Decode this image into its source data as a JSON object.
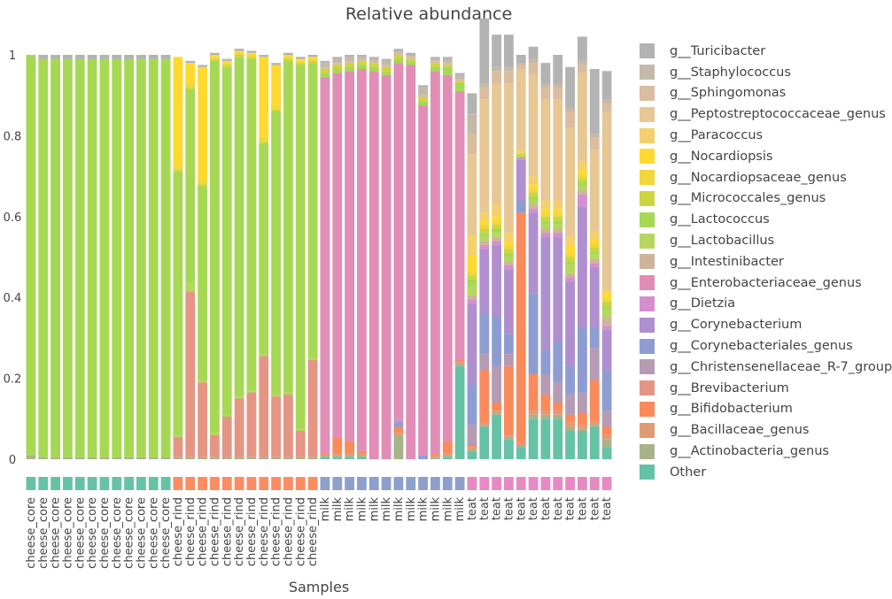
{
  "chart_data": {
    "type": "bar",
    "stacked": true,
    "title": "Relative abundance",
    "xlabel": "Samples",
    "ylabel": "",
    "ylim": [
      0,
      1
    ],
    "yticks": [
      "0",
      "0.2",
      "0.4",
      "0.6",
      "0.8",
      "1"
    ],
    "legend_position": "right",
    "categories": [
      "cheese_core",
      "cheese_core",
      "cheese_core",
      "cheese_core",
      "cheese_core",
      "cheese_core",
      "cheese_core",
      "cheese_core",
      "cheese_core",
      "cheese_core",
      "cheese_core",
      "cheese_core",
      "cheese_rind",
      "cheese_rind",
      "cheese_rind",
      "cheese_rind",
      "cheese_rind",
      "cheese_rind",
      "cheese_rind",
      "cheese_rind",
      "cheese_rind",
      "cheese_rind",
      "cheese_rind",
      "cheese_rind",
      "milk",
      "milk",
      "milk",
      "milk",
      "milk",
      "milk",
      "milk",
      "milk",
      "milk",
      "milk",
      "milk",
      "milk",
      "teat",
      "teat",
      "teat",
      "teat",
      "teat",
      "teat",
      "teat",
      "teat",
      "teat",
      "teat",
      "teat",
      "teat"
    ],
    "group_strip": {
      "cheese_core": "#66c2a5",
      "cheese_rind": "#fc8d62",
      "milk": "#8da0cb",
      "teat": "#e78ac3"
    },
    "series": [
      {
        "name": "Other",
        "color": "#66c2a5",
        "values": [
          0,
          0,
          0,
          0,
          0,
          0,
          0,
          0,
          0,
          0,
          0,
          0,
          0,
          0,
          0,
          0,
          0,
          0,
          0,
          0,
          0,
          0,
          0,
          0,
          0.005,
          0.005,
          0.005,
          0.005,
          0,
          0,
          0,
          0,
          0,
          0,
          0.005,
          0.23,
          0.02,
          0.08,
          0.11,
          0.05,
          0.03,
          0.1,
          0.1,
          0.1,
          0.07,
          0.07,
          0.08,
          0.03
        ]
      },
      {
        "name": "g__Actinobacteria_genus",
        "color": "#a8b38a",
        "values": [
          0.01,
          0.005,
          0.005,
          0.005,
          0.005,
          0.005,
          0.005,
          0.005,
          0.005,
          0.005,
          0.005,
          0.005,
          0.005,
          0.005,
          0.005,
          0.005,
          0.005,
          0.005,
          0.005,
          0.005,
          0.005,
          0.005,
          0.005,
          0.005,
          0.005,
          0.005,
          0.005,
          0.005,
          0,
          0,
          0.06,
          0,
          0,
          0.005,
          0.005,
          0.005,
          0.005,
          0.005,
          0.005,
          0.005,
          0.005,
          0.01,
          0.01,
          0.01,
          0.01,
          0.005,
          0.005,
          0.02
        ]
      },
      {
        "name": "g__Bacillaceae_genus",
        "color": "#e09b73",
        "values": [
          0,
          0,
          0,
          0,
          0,
          0,
          0,
          0,
          0,
          0,
          0,
          0,
          0,
          0,
          0,
          0,
          0,
          0,
          0,
          0,
          0,
          0,
          0,
          0,
          0,
          0.005,
          0.005,
          0.005,
          0,
          0,
          0.005,
          0,
          0,
          0.005,
          0.005,
          0.005,
          0.005,
          0.005,
          0.005,
          0.005,
          0.005,
          0.01,
          0.01,
          0.01,
          0.01,
          0.01,
          0.01,
          0.01
        ]
      },
      {
        "name": "g__Bifidobacterium",
        "color": "#fa8a5c",
        "values": [
          0,
          0,
          0,
          0,
          0,
          0,
          0,
          0,
          0,
          0,
          0,
          0,
          0,
          0,
          0,
          0,
          0,
          0,
          0,
          0,
          0,
          0,
          0,
          0,
          0.005,
          0.04,
          0.03,
          0.005,
          0,
          0,
          0.015,
          0,
          0,
          0.005,
          0.03,
          0.005,
          0.005,
          0.13,
          0.02,
          0.17,
          0.57,
          0.09,
          0.04,
          0.02,
          0.02,
          0.03,
          0.1,
          0.02
        ]
      },
      {
        "name": "g__Brevibacterium",
        "color": "#e59584",
        "values": [
          0,
          0,
          0,
          0,
          0,
          0,
          0,
          0,
          0,
          0,
          0,
          0,
          0.05,
          0.41,
          0.185,
          0.055,
          0.1,
          0.145,
          0.16,
          0.25,
          0.15,
          0.155,
          0.065,
          0.24,
          0,
          0,
          0,
          0,
          0,
          0,
          0,
          0,
          0,
          0,
          0,
          0,
          0,
          0,
          0,
          0,
          0,
          0,
          0,
          0,
          0,
          0,
          0,
          0
        ]
      },
      {
        "name": "g__Christensenellaceae_R-7_group",
        "color": "#b59bb4",
        "values": [
          0,
          0,
          0,
          0,
          0,
          0,
          0,
          0,
          0,
          0,
          0,
          0,
          0,
          0,
          0,
          0,
          0,
          0,
          0,
          0,
          0,
          0,
          0,
          0,
          0,
          0,
          0,
          0,
          0,
          0,
          0,
          0,
          0,
          0,
          0,
          0,
          0.05,
          0.04,
          0.09,
          0.03,
          0,
          0,
          0.05,
          0.05,
          0.05,
          0.05,
          0.08,
          0.04
        ]
      },
      {
        "name": "g__Corynebacteriales_genus",
        "color": "#8e9dd1",
        "values": [
          0,
          0,
          0,
          0,
          0,
          0,
          0,
          0,
          0,
          0,
          0,
          0,
          0,
          0,
          0,
          0,
          0,
          0,
          0,
          0,
          0,
          0,
          0,
          0,
          0,
          0,
          0,
          0,
          0,
          0,
          0.01,
          0,
          0.01,
          0,
          0,
          0,
          0.1,
          0.1,
          0.12,
          0.05,
          0.03,
          0.2,
          0.06,
          0.1,
          0.07,
          0.16,
          0.05,
          0.1
        ]
      },
      {
        "name": "g__Corynebacterium",
        "color": "#b08fce",
        "values": [
          0,
          0,
          0,
          0,
          0,
          0,
          0,
          0,
          0,
          0,
          0,
          0,
          0,
          0,
          0,
          0,
          0,
          0,
          0,
          0,
          0,
          0,
          0,
          0,
          0,
          0,
          0,
          0,
          0,
          0,
          0.005,
          0,
          0,
          0,
          0,
          0,
          0.2,
          0.16,
          0.18,
          0.16,
          0.1,
          0.2,
          0.28,
          0.26,
          0.21,
          0.3,
          0.15,
          0.1
        ]
      },
      {
        "name": "g__Dietzia",
        "color": "#d48fcf",
        "values": [
          0,
          0,
          0,
          0,
          0,
          0,
          0,
          0,
          0,
          0,
          0,
          0,
          0,
          0,
          0,
          0,
          0,
          0,
          0,
          0,
          0,
          0,
          0,
          0,
          0,
          0,
          0,
          0,
          0,
          0,
          0.005,
          0,
          0,
          0,
          0,
          0,
          0.01,
          0.01,
          0.01,
          0.01,
          0.005,
          0.01,
          0.01,
          0.01,
          0.01,
          0.03,
          0.01,
          0.01
        ]
      },
      {
        "name": "g__Enterobacteriaceae_genus",
        "color": "#e28db5",
        "values": [
          0,
          0,
          0,
          0,
          0,
          0,
          0,
          0,
          0,
          0,
          0,
          0,
          0,
          0,
          0,
          0,
          0,
          0,
          0,
          0,
          0,
          0,
          0,
          0,
          0.93,
          0.9,
          0.915,
          0.945,
          0.96,
          0.95,
          0.88,
          0.975,
          0.865,
          0.945,
          0.905,
          0.665,
          0,
          0,
          0,
          0,
          0,
          0,
          0,
          0,
          0,
          0,
          0,
          0
        ]
      },
      {
        "name": "g__Intestinibacter",
        "color": "#cdb49a",
        "values": [
          0,
          0,
          0,
          0,
          0,
          0,
          0,
          0,
          0,
          0,
          0,
          0,
          0,
          0,
          0,
          0,
          0,
          0,
          0,
          0,
          0,
          0,
          0,
          0,
          0,
          0,
          0,
          0,
          0,
          0,
          0,
          0,
          0,
          0,
          0,
          0,
          0.01,
          0.01,
          0.01,
          0.01,
          0,
          0.01,
          0.01,
          0.01,
          0.01,
          0.01,
          0.01,
          0.02
        ]
      },
      {
        "name": "g__Lactobacillus",
        "color": "#b6d75e",
        "values": [
          0,
          0,
          0,
          0,
          0,
          0,
          0,
          0,
          0,
          0,
          0,
          0,
          0.005,
          0.02,
          0.005,
          0.005,
          0.005,
          0.005,
          0.005,
          0.005,
          0.005,
          0.005,
          0.005,
          0.005,
          0,
          0,
          0,
          0,
          0,
          0,
          0,
          0,
          0,
          0,
          0,
          0,
          0.02,
          0.01,
          0.01,
          0.01,
          0,
          0.01,
          0.01,
          0.01,
          0.02,
          0.01,
          0.01,
          0.02
        ]
      },
      {
        "name": "g__Lactococcus",
        "color": "#a6d854",
        "values": [
          0.99,
          0.985,
          0.985,
          0.985,
          0.985,
          0.985,
          0.985,
          0.985,
          0.985,
          0.985,
          0.985,
          0.985,
          0.65,
          0.48,
          0.48,
          0.92,
          0.86,
          0.84,
          0.82,
          0.52,
          0.7,
          0.82,
          0.9,
          0.73,
          0.01,
          0.01,
          0.01,
          0.01,
          0.01,
          0.01,
          0.01,
          0.01,
          0.01,
          0.01,
          0.02,
          0.02,
          0.02,
          0.01,
          0.01,
          0.01,
          0.005,
          0.01,
          0.01,
          0.01,
          0.01,
          0.01,
          0.01,
          0.01
        ]
      },
      {
        "name": "g__Micrococcales_genus",
        "color": "#ccd43f",
        "values": [
          0,
          0,
          0,
          0,
          0,
          0,
          0,
          0,
          0,
          0,
          0,
          0,
          0.005,
          0.005,
          0.005,
          0.005,
          0.005,
          0.005,
          0.005,
          0.005,
          0.005,
          0.005,
          0.005,
          0.005,
          0.01,
          0.01,
          0.01,
          0.01,
          0.01,
          0.01,
          0.01,
          0.005,
          0.01,
          0.01,
          0.005,
          0.005,
          0.01,
          0.01,
          0.01,
          0.01,
          0.005,
          0.01,
          0.01,
          0.01,
          0.01,
          0.01,
          0.01,
          0.01
        ]
      },
      {
        "name": "g__Nocardiopsaceae_genus",
        "color": "#f0d83b",
        "values": [
          0,
          0,
          0,
          0,
          0,
          0,
          0,
          0,
          0,
          0,
          0,
          0,
          0.01,
          0.01,
          0.01,
          0.005,
          0.005,
          0.005,
          0.005,
          0.01,
          0.01,
          0.005,
          0.005,
          0.005,
          0,
          0,
          0,
          0,
          0,
          0,
          0,
          0,
          0,
          0,
          0,
          0,
          0.01,
          0.01,
          0.01,
          0.01,
          0,
          0.01,
          0.01,
          0.01,
          0.01,
          0.01,
          0.01,
          0.01
        ]
      },
      {
        "name": "g__Nocardiopsis",
        "color": "#ffd92f",
        "values": [
          0,
          0,
          0,
          0,
          0,
          0,
          0,
          0,
          0,
          0,
          0,
          0,
          0.27,
          0.05,
          0.28,
          0.005,
          0.005,
          0.005,
          0.005,
          0.2,
          0.1,
          0.005,
          0.005,
          0.005,
          0,
          0,
          0,
          0,
          0,
          0,
          0,
          0,
          0,
          0,
          0,
          0,
          0.04,
          0.01,
          0.01,
          0.01,
          0,
          0.01,
          0.01,
          0.01,
          0.02,
          0.01,
          0.01,
          0.01
        ]
      },
      {
        "name": "g__Paracoccus",
        "color": "#f4d06c",
        "values": [
          0,
          0,
          0,
          0,
          0,
          0,
          0,
          0,
          0,
          0,
          0,
          0,
          0,
          0,
          0,
          0,
          0,
          0,
          0,
          0,
          0,
          0,
          0,
          0,
          0,
          0,
          0,
          0,
          0,
          0,
          0,
          0,
          0,
          0,
          0,
          0,
          0.05,
          0.02,
          0.03,
          0.02,
          0.01,
          0.02,
          0.02,
          0.02,
          0.02,
          0.02,
          0.02,
          0.01
        ]
      },
      {
        "name": "g__Peptostreptococcaceae_genus",
        "color": "#e7c794",
        "values": [
          0,
          0,
          0,
          0,
          0,
          0,
          0,
          0,
          0,
          0,
          0,
          0,
          0,
          0,
          0,
          0,
          0,
          0,
          0,
          0,
          0,
          0,
          0,
          0,
          0,
          0,
          0,
          0,
          0,
          0,
          0,
          0,
          0,
          0,
          0,
          0,
          0.2,
          0.28,
          0.3,
          0.37,
          0.2,
          0.25,
          0.25,
          0.25,
          0.27,
          0.22,
          0.2,
          0.44
        ]
      },
      {
        "name": "g__Sphingomonas",
        "color": "#dabd9f",
        "values": [
          0,
          0,
          0,
          0,
          0,
          0,
          0,
          0,
          0,
          0,
          0,
          0,
          0,
          0,
          0,
          0,
          0,
          0,
          0,
          0,
          0,
          0,
          0,
          0,
          0.005,
          0.005,
          0.005,
          0.005,
          0.005,
          0.005,
          0.005,
          0.005,
          0.005,
          0.005,
          0.005,
          0.005,
          0.05,
          0.03,
          0.03,
          0.03,
          0.01,
          0.03,
          0.03,
          0.03,
          0.04,
          0.02,
          0.03,
          0.02
        ]
      },
      {
        "name": "g__Staphylococcus",
        "color": "#c4b8a8",
        "values": [
          0,
          0,
          0,
          0,
          0,
          0,
          0,
          0,
          0,
          0,
          0,
          0,
          0,
          0,
          0,
          0,
          0,
          0,
          0,
          0,
          0,
          0,
          0,
          0,
          0.01,
          0.01,
          0.01,
          0.005,
          0.005,
          0.01,
          0.005,
          0.005,
          0.02,
          0.005,
          0.01,
          0.01,
          0.05,
          0.01,
          0.01,
          0.01,
          0.005,
          0.01,
          0.01,
          0.01,
          0.01,
          0.01,
          0.01,
          0.01
        ]
      },
      {
        "name": "g__Turicibacter",
        "color": "#b3b3b3",
        "values": [
          0,
          0.01,
          0.01,
          0.01,
          0.01,
          0.01,
          0.01,
          0.01,
          0.01,
          0.01,
          0.01,
          0.01,
          0,
          0.005,
          0.005,
          0.005,
          0.005,
          0.005,
          0.005,
          0.005,
          0.005,
          0.005,
          0.005,
          0.005,
          0.005,
          0.005,
          0.005,
          0.005,
          0.005,
          0.005,
          0.005,
          0.005,
          0.005,
          0.005,
          0.005,
          0.005,
          0.05,
          0.16,
          0.08,
          0.08,
          0.02,
          0.03,
          0.05,
          0.07,
          0.1,
          0.06,
          0.16,
          0.07
        ]
      }
    ]
  }
}
